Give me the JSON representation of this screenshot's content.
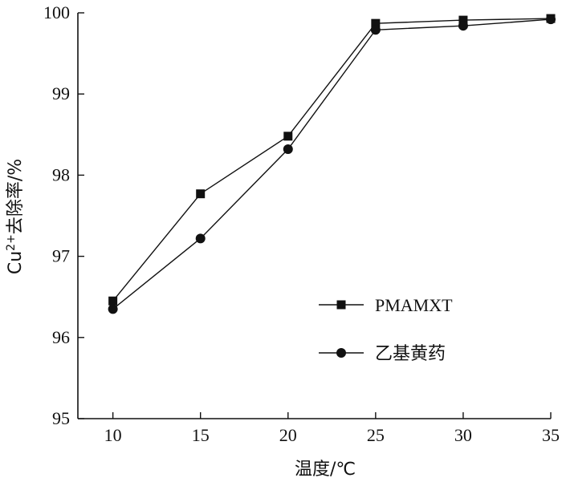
{
  "chart_data": {
    "type": "line",
    "title": "",
    "xlabel": "温度/℃",
    "ylabel_main": "Cu",
    "ylabel_sup": "2+",
    "ylabel_rest": "去除率/%",
    "x": [
      10,
      15,
      20,
      25,
      30,
      35
    ],
    "xlim": [
      8,
      35
    ],
    "ylim": [
      95,
      100
    ],
    "x_ticks": [
      "10",
      "15",
      "20",
      "25",
      "30",
      "35"
    ],
    "y_ticks": [
      "95",
      "96",
      "97",
      "98",
      "99",
      "100"
    ],
    "grid": false,
    "legend_position": "lower-right",
    "series": [
      {
        "name": "PMAMXT",
        "marker": "square",
        "color": "#111111",
        "values": [
          96.45,
          97.77,
          98.48,
          99.87,
          99.91,
          99.93
        ]
      },
      {
        "name": "乙基黄药",
        "marker": "circle",
        "color": "#111111",
        "values": [
          96.35,
          97.22,
          98.32,
          99.79,
          99.84,
          99.92
        ]
      }
    ]
  }
}
